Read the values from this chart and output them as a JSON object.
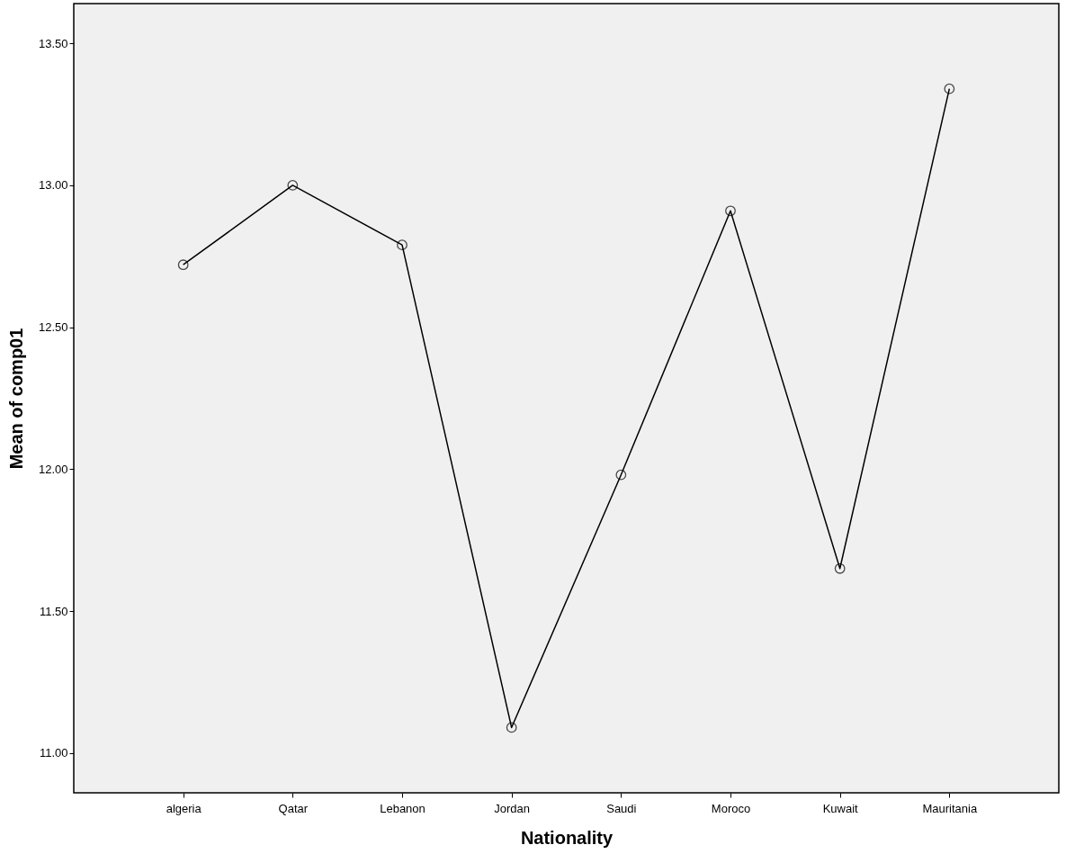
{
  "chart_data": {
    "type": "line",
    "xlabel": "Nationality",
    "ylabel": "Mean of comp01",
    "categories": [
      "algeria",
      "Qatar",
      "Lebanon",
      "Jordan",
      "Saudi",
      "Moroco",
      "Kuwait",
      "Mauritania"
    ],
    "series": [
      {
        "color": "#000000",
        "values": [
          12.72,
          13.0,
          12.79,
          11.09,
          11.98,
          12.91,
          11.65,
          13.34
        ]
      }
    ],
    "ylim": [
      10.86,
      13.64
    ],
    "yticks": [
      {
        "value": 11.0,
        "label": "11.00"
      },
      {
        "value": 11.5,
        "label": "11.50"
      },
      {
        "value": 12.0,
        "label": "12.00"
      },
      {
        "value": 12.5,
        "label": "12.50"
      },
      {
        "value": 13.0,
        "label": "13.00"
      },
      {
        "value": 13.5,
        "label": "13.50"
      }
    ],
    "grid": false,
    "marker": "circle",
    "line_style": "solid"
  }
}
